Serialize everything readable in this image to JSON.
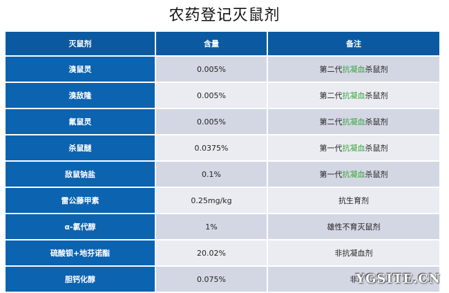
{
  "title": "农药登记灭鼠剂",
  "table": {
    "headers": [
      "灭鼠剂",
      "含量",
      "备注"
    ],
    "rows": [
      {
        "name": "溴鼠灵",
        "content": "0.005%",
        "note_pre": "第二代",
        "note_link": "抗凝血",
        "note_post": "杀鼠剂"
      },
      {
        "name": "溴敌隆",
        "content": "0.005%",
        "note_pre": "第二代",
        "note_link": "抗凝血",
        "note_post": "杀鼠剂"
      },
      {
        "name": "氟鼠灵",
        "content": "0.005%",
        "note_pre": "第二代",
        "note_link": "抗凝血",
        "note_post": "杀鼠剂"
      },
      {
        "name": "杀鼠醚",
        "content": "0.0375%",
        "note_pre": "第一代",
        "note_link": "抗凝血",
        "note_post": "杀鼠剂"
      },
      {
        "name": "敌鼠钠盐",
        "content": "0.1%",
        "note_pre": "第一代",
        "note_link": "抗凝血",
        "note_post": "杀鼠剂"
      },
      {
        "name": "雷公藤甲素",
        "content": "0.25mg/kg",
        "note_pre": "抗生育剂",
        "note_link": "",
        "note_post": ""
      },
      {
        "name": "α-氯代醇",
        "content": "1%",
        "note_pre": "雄性不育灭鼠剂",
        "note_link": "",
        "note_post": ""
      },
      {
        "name": "硫酸钡+地芬诺酯",
        "content": "20.02%",
        "note_pre": "非抗凝血剂",
        "note_link": "",
        "note_post": ""
      },
      {
        "name": "胆钙化醇",
        "content": "0.075%",
        "note_pre": "非",
        "note_link": "",
        "note_post": ""
      }
    ]
  },
  "watermark": "YGSITE.CN",
  "colors": {
    "header_bg": "#0b5aa1",
    "name_bg": "#0c63b0",
    "row_odd": "#d3d7e3",
    "row_even": "#eaecf2",
    "link": "#36a33a"
  }
}
